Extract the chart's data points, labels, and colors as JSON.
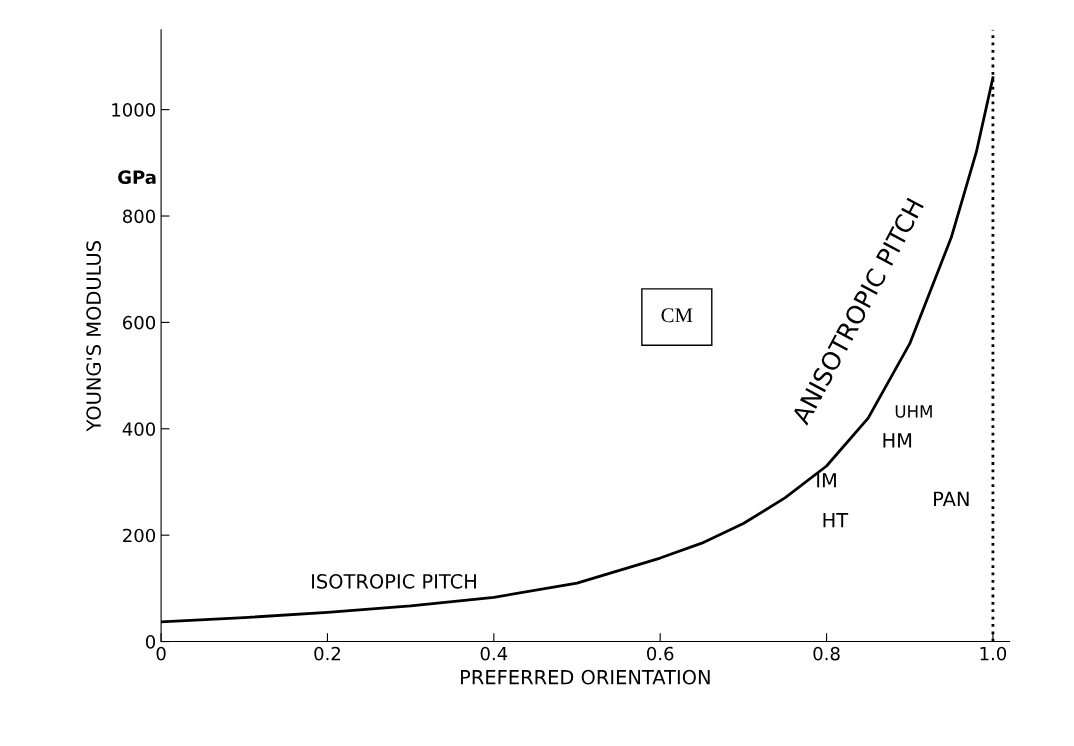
{
  "chart_data": {
    "type": "line",
    "xlabel": "PREFERRED ORIENTATION",
    "ylabel": "YOUNG'S MODULUS",
    "x": [
      0,
      0.1,
      0.2,
      0.3,
      0.4,
      0.5,
      0.6,
      0.65,
      0.7,
      0.75,
      0.8,
      0.85,
      0.9,
      0.95,
      0.98,
      1.0
    ],
    "series": [
      {
        "color": "#000000",
        "values": [
          37,
          45,
          55,
          67,
          83,
          110,
          157,
          185,
          222,
          270,
          330,
          420,
          560,
          760,
          920,
          1060
        ]
      }
    ],
    "xlim": [
      0,
      1.02
    ],
    "ylim": [
      0,
      1150
    ],
    "xticks": [
      0,
      0.2,
      0.4,
      0.6,
      0.8,
      {
        "value": 1.0,
        "label": "1.0"
      }
    ],
    "yticks": [
      0,
      200,
      400,
      600,
      800,
      1000
    ],
    "ref_lines": [
      {
        "axis": "x",
        "value": 1.0,
        "label": null,
        "line_style": "dotted"
      }
    ],
    "annotations": [
      "GPa",
      "CM",
      "ISOTROPIC PITCH",
      "ANISOTROPIC PITCH",
      "HT",
      "IM",
      "HM",
      "UHM",
      "PAN"
    ],
    "grid": false,
    "marker": "none",
    "line_style": "solid"
  }
}
